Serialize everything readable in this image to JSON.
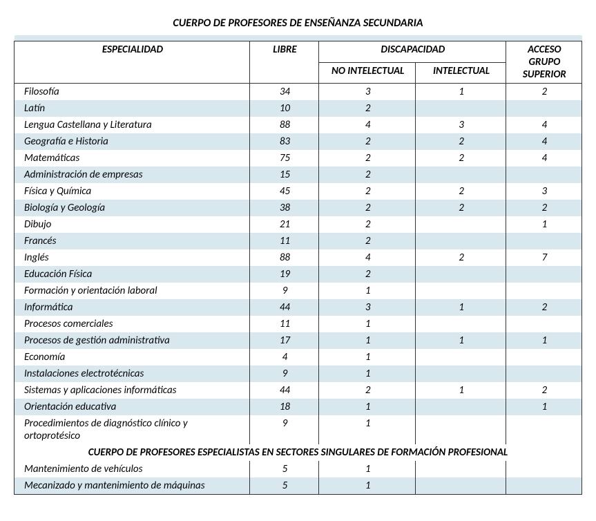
{
  "title": "CUERPO DE PROFESORES DE ENSEÑANZA SECUNDARIA",
  "headers": {
    "especialidad": "ESPECIALIDAD",
    "libre": "LIBRE",
    "discapacidad": "DISCAPACIDAD",
    "no_intelectual": "NO INTELECTUAL",
    "intelectual": "INTELECTUAL",
    "acceso": "ACCESO GRUPO SUPERIOR"
  },
  "section2_title": "CUERPO DE PROFESORES ESPECIALISTAS EN SECTORES SINGULARES DE FORMACIÓN PROFESIONAL",
  "rows": [
    {
      "esp": "Filosofía",
      "libre": "34",
      "noint": "3",
      "int": "1",
      "acc": "2"
    },
    {
      "esp": "Latín",
      "libre": "10",
      "noint": "2",
      "int": "",
      "acc": ""
    },
    {
      "esp": "Lengua Castellana y Literatura",
      "libre": "88",
      "noint": "4",
      "int": "3",
      "acc": "4"
    },
    {
      "esp": "Geografía e Historia",
      "libre": "83",
      "noint": "2",
      "int": "2",
      "acc": "4"
    },
    {
      "esp": "Matemáticas",
      "libre": "75",
      "noint": "2",
      "int": "2",
      "acc": "4"
    },
    {
      "esp": "Administración de empresas",
      "libre": "15",
      "noint": "2",
      "int": "",
      "acc": ""
    },
    {
      "esp": "Física y Química",
      "libre": "45",
      "noint": "2",
      "int": "2",
      "acc": "3"
    },
    {
      "esp": "Biología y Geología",
      "libre": "38",
      "noint": "2",
      "int": "2",
      "acc": "2"
    },
    {
      "esp": "Dibujo",
      "libre": "21",
      "noint": "2",
      "int": "",
      "acc": "1"
    },
    {
      "esp": "Francés",
      "libre": "11",
      "noint": "2",
      "int": "",
      "acc": ""
    },
    {
      "esp": "Inglés",
      "libre": "88",
      "noint": "4",
      "int": "2",
      "acc": "7"
    },
    {
      "esp": "Educación Física",
      "libre": "19",
      "noint": "2",
      "int": "",
      "acc": ""
    },
    {
      "esp": "Formación y orientación laboral",
      "libre": "9",
      "noint": "1",
      "int": "",
      "acc": ""
    },
    {
      "esp": "Informática",
      "libre": "44",
      "noint": "3",
      "int": "1",
      "acc": "2"
    },
    {
      "esp": "Procesos comerciales",
      "libre": "11",
      "noint": "1",
      "int": "",
      "acc": ""
    },
    {
      "esp": "Procesos de gestión administrativa",
      "libre": "17",
      "noint": "1",
      "int": "1",
      "acc": "1"
    },
    {
      "esp": "Economía",
      "libre": "4",
      "noint": "1",
      "int": "",
      "acc": ""
    },
    {
      "esp": "Instalaciones electrotécnicas",
      "libre": "9",
      "noint": "1",
      "int": "",
      "acc": ""
    },
    {
      "esp": "Sistemas y aplicaciones informáticas",
      "libre": "44",
      "noint": "2",
      "int": "1",
      "acc": "2"
    },
    {
      "esp": "Orientación educativa",
      "libre": "18",
      "noint": "1",
      "int": "",
      "acc": "1"
    },
    {
      "esp": "Procedimientos de diagnóstico clínico y ortoprotésico",
      "libre": "9",
      "noint": "1",
      "int": "",
      "acc": ""
    }
  ],
  "rows2": [
    {
      "esp": "Mantenimiento de vehículos",
      "libre": "5",
      "noint": "1",
      "int": "",
      "acc": ""
    },
    {
      "esp": "Mecanizado y mantenimiento de máquinas",
      "libre": "5",
      "noint": "1",
      "int": "",
      "acc": ""
    }
  ],
  "style": {
    "shade_color": "#d9e8ef",
    "border_color": "#333333",
    "font_family": "Calibri",
    "title_fontsize": 16,
    "cell_fontsize": 15
  }
}
